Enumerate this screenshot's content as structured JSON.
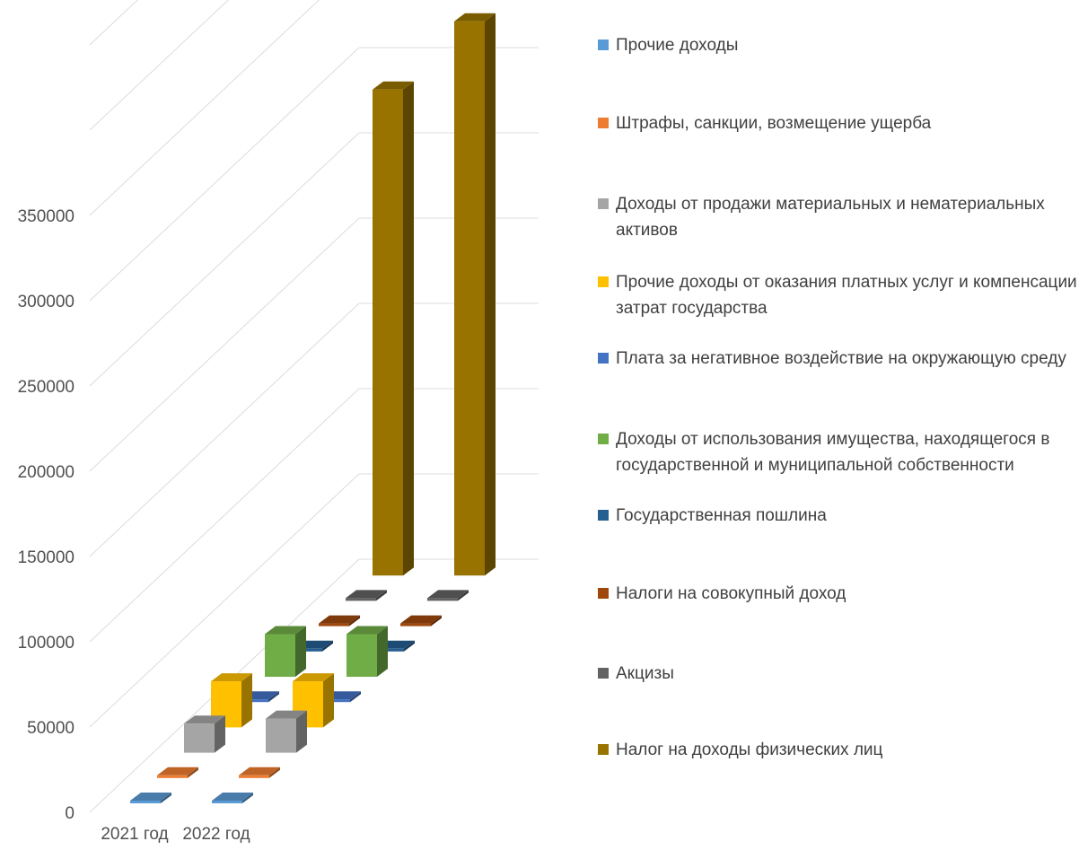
{
  "chart_data": {
    "type": "bar",
    "subtype": "3d-column",
    "title": "",
    "xlabel": "",
    "ylabel": "",
    "categories": [
      "2021 год",
      "2022 год"
    ],
    "y_ticks": [
      "0",
      "50000",
      "100000",
      "150000",
      "200000",
      "250000",
      "300000",
      "350000"
    ],
    "ylim": [
      0,
      450000
    ],
    "grid": true,
    "legend_position": "right",
    "series": [
      {
        "name": "Прочие доходы",
        "color": "#5b9bd5",
        "values": [
          0,
          0
        ]
      },
      {
        "name": "Штрафы, санкции, возмещение ущерба",
        "color": "#ed7d31",
        "values": [
          0,
          0
        ]
      },
      {
        "name": "Доходы от продажи материальных и нематериальных активов",
        "color": "#a5a5a5",
        "values": [
          17000,
          20000
        ]
      },
      {
        "name": "Прочие доходы от оказания платных услуг и компенсации затрат государства",
        "color": "#ffc000",
        "values": [
          27000,
          27000
        ]
      },
      {
        "name": "Плата за негативное воздействие на окружающую среду",
        "color": "#4472c4",
        "values": [
          0,
          0
        ]
      },
      {
        "name": "Доходы от использования имущества, находящегося в государственной и муниципальной собственности",
        "color": "#70ad47",
        "values": [
          25000,
          25000
        ]
      },
      {
        "name": "Государственная пошлина",
        "color": "#255e91",
        "values": [
          0,
          0
        ]
      },
      {
        "name": "Налоги на совокупный доход",
        "color": "#9e480e",
        "values": [
          0,
          0
        ]
      },
      {
        "name": "Акцизы",
        "color": "#636363",
        "values": [
          0,
          0
        ]
      },
      {
        "name": "Налог на доходы физических лиц",
        "color": "#997300",
        "values": [
          285000,
          325000
        ]
      }
    ]
  }
}
